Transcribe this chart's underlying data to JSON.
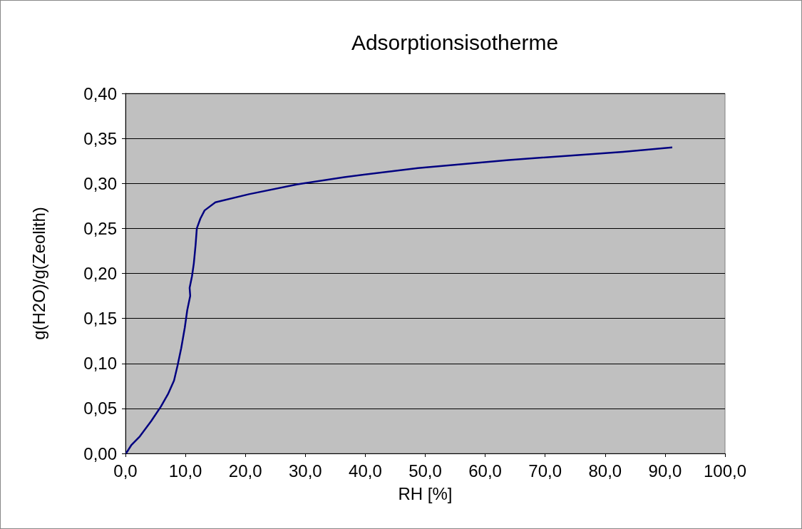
{
  "chart_data": {
    "type": "line",
    "title": "Adsorptionsisotherme",
    "xlabel": "RH [%]",
    "ylabel": "g(H2O)/g(Zeolith)",
    "x": [
      0.1,
      1.0,
      2.4,
      4.3,
      5.9,
      7.1,
      8.1,
      8.7,
      9.3,
      9.9,
      10.3,
      10.8,
      10.7,
      11.1,
      11.4,
      11.7,
      11.9,
      12.5,
      13.2,
      15.0,
      20.6,
      28.7,
      36.5,
      48.8,
      63.9,
      83.0,
      91.2
    ],
    "series": [
      {
        "color": "#000080",
        "values": [
          0.0,
          0.0095,
          0.019,
          0.036,
          0.052,
          0.066,
          0.081,
          0.098,
          0.117,
          0.14,
          0.159,
          0.175,
          0.184,
          0.197,
          0.211,
          0.232,
          0.25,
          0.261,
          0.27,
          0.279,
          0.288,
          0.299,
          0.307,
          0.317,
          0.326,
          0.335,
          0.34
        ]
      }
    ],
    "xlim": [
      0,
      100
    ],
    "xticks": [
      {
        "value": 0,
        "label": "0,0"
      },
      {
        "value": 10,
        "label": "10,0"
      },
      {
        "value": 20,
        "label": "20,0"
      },
      {
        "value": 30,
        "label": "30,0"
      },
      {
        "value": 40,
        "label": "40,0"
      },
      {
        "value": 50,
        "label": "50,0"
      },
      {
        "value": 60,
        "label": "60,0"
      },
      {
        "value": 70,
        "label": "70,0"
      },
      {
        "value": 80,
        "label": "80,0"
      },
      {
        "value": 90,
        "label": "90,0"
      },
      {
        "value": 100,
        "label": "100,0"
      }
    ],
    "ylim": [
      0,
      0.4
    ],
    "yticks": [
      {
        "value": 0,
        "label": "0,00"
      },
      {
        "value": 0.05,
        "label": "0,05"
      },
      {
        "value": 0.1,
        "label": "0,10"
      },
      {
        "value": 0.15,
        "label": "0,15"
      },
      {
        "value": 0.2,
        "label": "0,20"
      },
      {
        "value": 0.25,
        "label": "0,25"
      },
      {
        "value": 0.3,
        "label": "0,30"
      },
      {
        "value": 0.35,
        "label": "0,35"
      },
      {
        "value": 0.4,
        "label": "0,40"
      }
    ],
    "grid": "y",
    "marker": "none",
    "line_style": "solid"
  }
}
